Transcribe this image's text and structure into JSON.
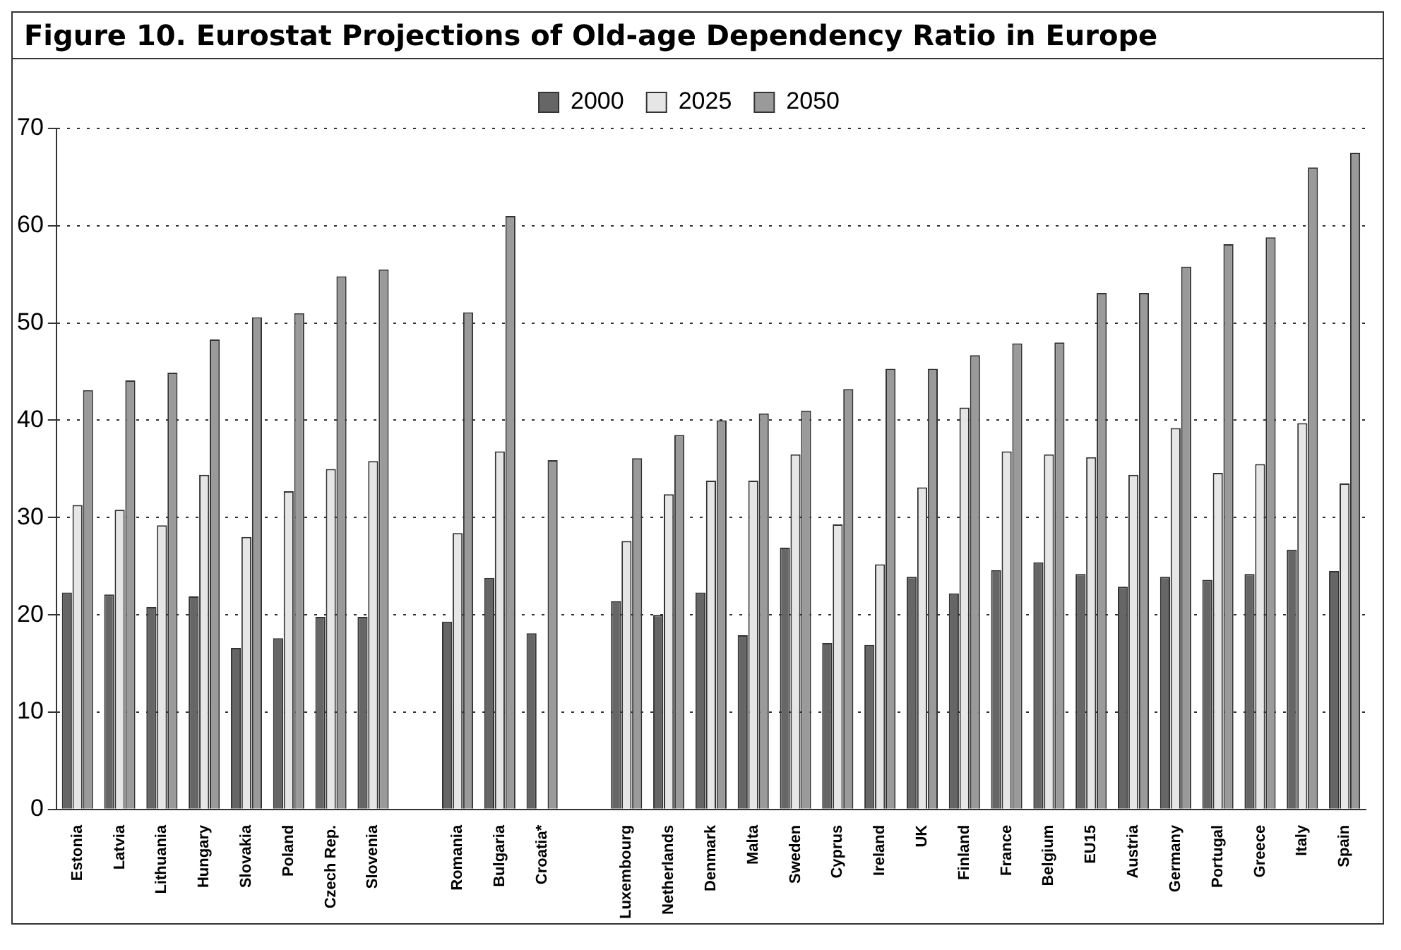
{
  "chart_data": {
    "type": "bar",
    "title": "Figure 10.  Eurostat Projections of Old-age Dependency Ratio in Europe",
    "categories": [
      "Estonia",
      "Latvia",
      "Lithuania",
      "Hungary",
      "Slovakia",
      "Poland",
      "Czech Rep.",
      "Slovenia",
      null,
      "Romania",
      "Bulgaria",
      "Croatia*",
      null,
      "Luxembourg",
      "Netherlands",
      "Denmark",
      "Malta",
      "Sweden",
      "Cyprus",
      "Ireland",
      "UK",
      "Finland",
      "France",
      "Belgium",
      "EU15",
      "Austria",
      "Germany",
      "Portugal",
      "Greece",
      "Italy",
      "Spain"
    ],
    "series": [
      {
        "name": "2000",
        "color": "#666666",
        "values": [
          22.3,
          22.1,
          20.8,
          21.9,
          16.6,
          17.6,
          19.8,
          19.8,
          null,
          19.3,
          23.8,
          18.1,
          null,
          21.4,
          20.0,
          22.3,
          17.9,
          26.9,
          17.1,
          16.9,
          23.9,
          22.2,
          24.6,
          25.4,
          24.2,
          22.9,
          23.9,
          23.6,
          24.2,
          26.7,
          24.5
        ]
      },
      {
        "name": "2025",
        "color": "#e6e6e6",
        "values": [
          31.3,
          30.8,
          29.2,
          34.4,
          28.0,
          32.7,
          35.0,
          35.8,
          null,
          28.4,
          36.8,
          null,
          null,
          27.6,
          32.4,
          33.8,
          33.8,
          36.5,
          29.3,
          25.2,
          33.1,
          41.3,
          36.8,
          36.5,
          36.2,
          34.4,
          39.2,
          34.6,
          35.5,
          39.7,
          33.5
        ]
      },
      {
        "name": "2050",
        "color": "#9a9a9a",
        "values": [
          43.1,
          44.1,
          44.9,
          48.3,
          50.6,
          51.0,
          54.8,
          55.5,
          null,
          51.1,
          61.0,
          35.9,
          null,
          36.1,
          38.5,
          40.0,
          40.7,
          41.0,
          43.2,
          45.3,
          45.3,
          46.7,
          47.9,
          48.0,
          53.1,
          53.1,
          55.8,
          58.1,
          58.8,
          66.0,
          67.5
        ]
      }
    ],
    "ylim": [
      0,
      70
    ],
    "yticks": [
      0,
      10,
      20,
      30,
      40,
      50,
      60,
      70
    ],
    "grid": "y",
    "legend": "top"
  }
}
